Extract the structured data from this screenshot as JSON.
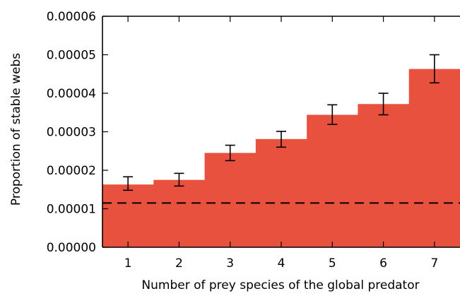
{
  "chart_data": {
    "type": "bar",
    "xlabel": "Number of prey species of the global predator",
    "ylabel": "Proportion of stable webs",
    "categories": [
      "1",
      "2",
      "3",
      "4",
      "5",
      "6",
      "7"
    ],
    "values": [
      1.63e-05,
      1.75e-05,
      2.45e-05,
      2.81e-05,
      3.44e-05,
      3.72e-05,
      4.63e-05
    ],
    "error_low": [
      1.48e-05,
      1.59e-05,
      2.25e-05,
      2.6e-05,
      3.19e-05,
      3.44e-05,
      4.27e-05
    ],
    "error_high": [
      1.83e-05,
      1.92e-05,
      2.65e-05,
      3.01e-05,
      3.7e-05,
      4e-05,
      5e-05
    ],
    "reference_line": {
      "value": 1.15e-05,
      "style": "dashed",
      "color": "#000000"
    },
    "ylim": [
      0,
      6e-05
    ],
    "yticks": [
      "0.00000",
      "0.00001",
      "0.00002",
      "0.00003",
      "0.00004",
      "0.00005",
      "0.00006"
    ],
    "ytick_values": [
      0,
      1e-05,
      2e-05,
      3e-05,
      4e-05,
      5e-05,
      6e-05
    ],
    "xlim": [
      0.5,
      7.5
    ],
    "bar_color": "#e9513f",
    "grid": false,
    "legend": "none"
  }
}
